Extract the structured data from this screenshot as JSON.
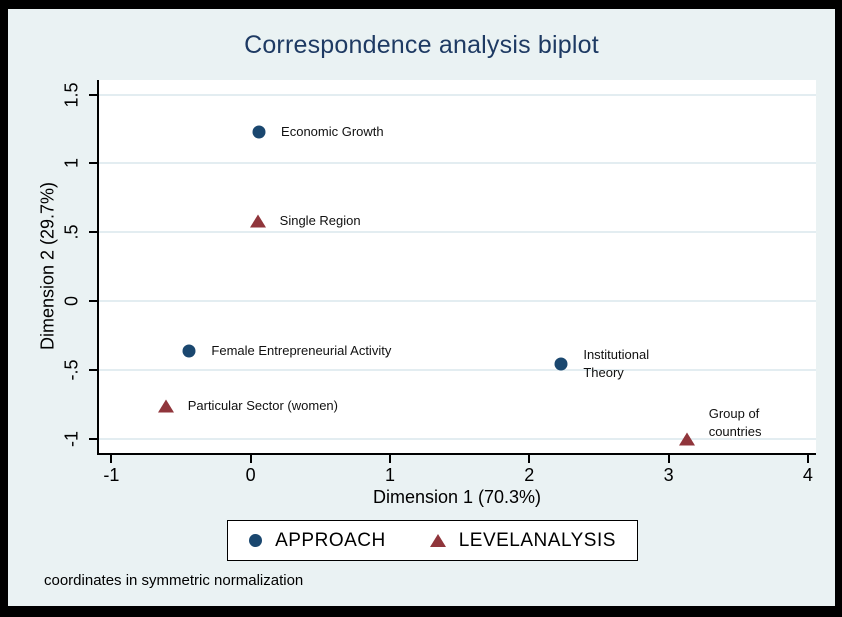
{
  "title": "Correspondence analysis biplot",
  "caption": "coordinates in symmetric normalization",
  "colors": {
    "frame": "#000000",
    "background": "#eaf2f3",
    "plot_background": "#ffffff",
    "gridline": "#e3edf1",
    "axis": "#000000",
    "title_text": "#1e3a63",
    "approach": "#1a476f",
    "levelanalysis": "#90353b"
  },
  "legend": {
    "items": [
      {
        "label": "APPROACH",
        "marker": "circle",
        "color": "#1a476f"
      },
      {
        "label": "LEVELANALYSIS",
        "marker": "triangle",
        "color": "#90353b"
      }
    ]
  },
  "chart_data": {
    "type": "scatter",
    "title": "Correspondence analysis biplot",
    "xlabel": "Dimension 1 (70.3%)",
    "ylabel": "Dimension 2 (29.7%)",
    "xlim": [
      -1.09,
      4.06
    ],
    "ylim": [
      -1.1,
      1.61
    ],
    "x_ticks": [
      {
        "value": -1,
        "label": "-1"
      },
      {
        "value": 0,
        "label": "0"
      },
      {
        "value": 1,
        "label": "1"
      },
      {
        "value": 2,
        "label": "2"
      },
      {
        "value": 3,
        "label": "3"
      },
      {
        "value": 4,
        "label": "4"
      }
    ],
    "y_ticks": [
      {
        "value": -1,
        "label": "-1"
      },
      {
        "value": -0.5,
        "label": "-.5"
      },
      {
        "value": 0,
        "label": "0"
      },
      {
        "value": 0.5,
        "label": ".5"
      },
      {
        "value": 1,
        "label": "1"
      },
      {
        "value": 1.5,
        "label": "1.5"
      }
    ],
    "grid": "horizontal-only",
    "legend_position": "bottom",
    "series": [
      {
        "name": "APPROACH",
        "marker": "circle",
        "color": "#1a476f",
        "points": [
          {
            "label": "Economic Growth",
            "x": 0.06,
            "y": 1.23,
            "label_pos": "right"
          },
          {
            "label": "Female Entrepreneurial Activity",
            "x": -0.44,
            "y": -0.36,
            "label_pos": "right"
          },
          {
            "label": "Institutional\nTheory",
            "x": 2.23,
            "y": -0.46,
            "label_pos": "right"
          }
        ]
      },
      {
        "name": "LEVELANALYSIS",
        "marker": "triangle",
        "color": "#90353b",
        "points": [
          {
            "label": "Single Region",
            "x": 0.05,
            "y": 0.58,
            "label_pos": "right"
          },
          {
            "label": "Particular Sector (women)",
            "x": -0.61,
            "y": -0.76,
            "label_pos": "right"
          },
          {
            "label": "Group of\ncountries",
            "x": 3.13,
            "y": -1.0,
            "label_pos": "upper-right"
          }
        ]
      }
    ]
  }
}
